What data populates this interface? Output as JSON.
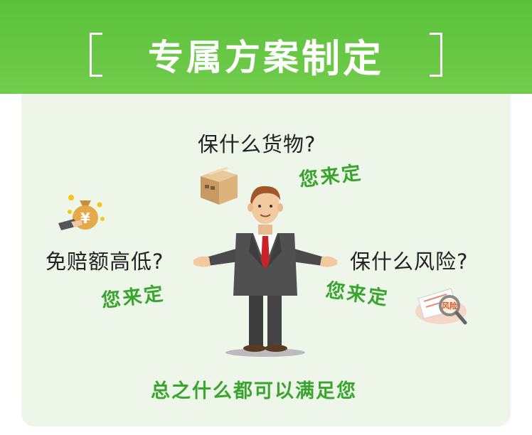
{
  "banner": {
    "title_part1": "专属方案",
    "title_part2": "制定",
    "bracket_left": "[",
    "bracket_right": "]"
  },
  "questions": {
    "goods": "保什么货物?",
    "deductible": "免赔额高低?",
    "risk": "保什么风险?"
  },
  "answers": {
    "goods": "您来定",
    "deductible": "您来定",
    "risk": "您来定"
  },
  "footer": {
    "text": "总之什么都可以满足您"
  },
  "icons": {
    "box": "cardboard-box-icon",
    "money": "money-bag-icon",
    "risk": "risk-magnifier-icon",
    "person": "businessman-illustration"
  },
  "colors": {
    "banner_green": "#5ac13a",
    "accent_green": "#3aa52e",
    "panel_bg": "#eef6ea",
    "text_dark": "#222222"
  },
  "risk_stamp_text": "风险"
}
